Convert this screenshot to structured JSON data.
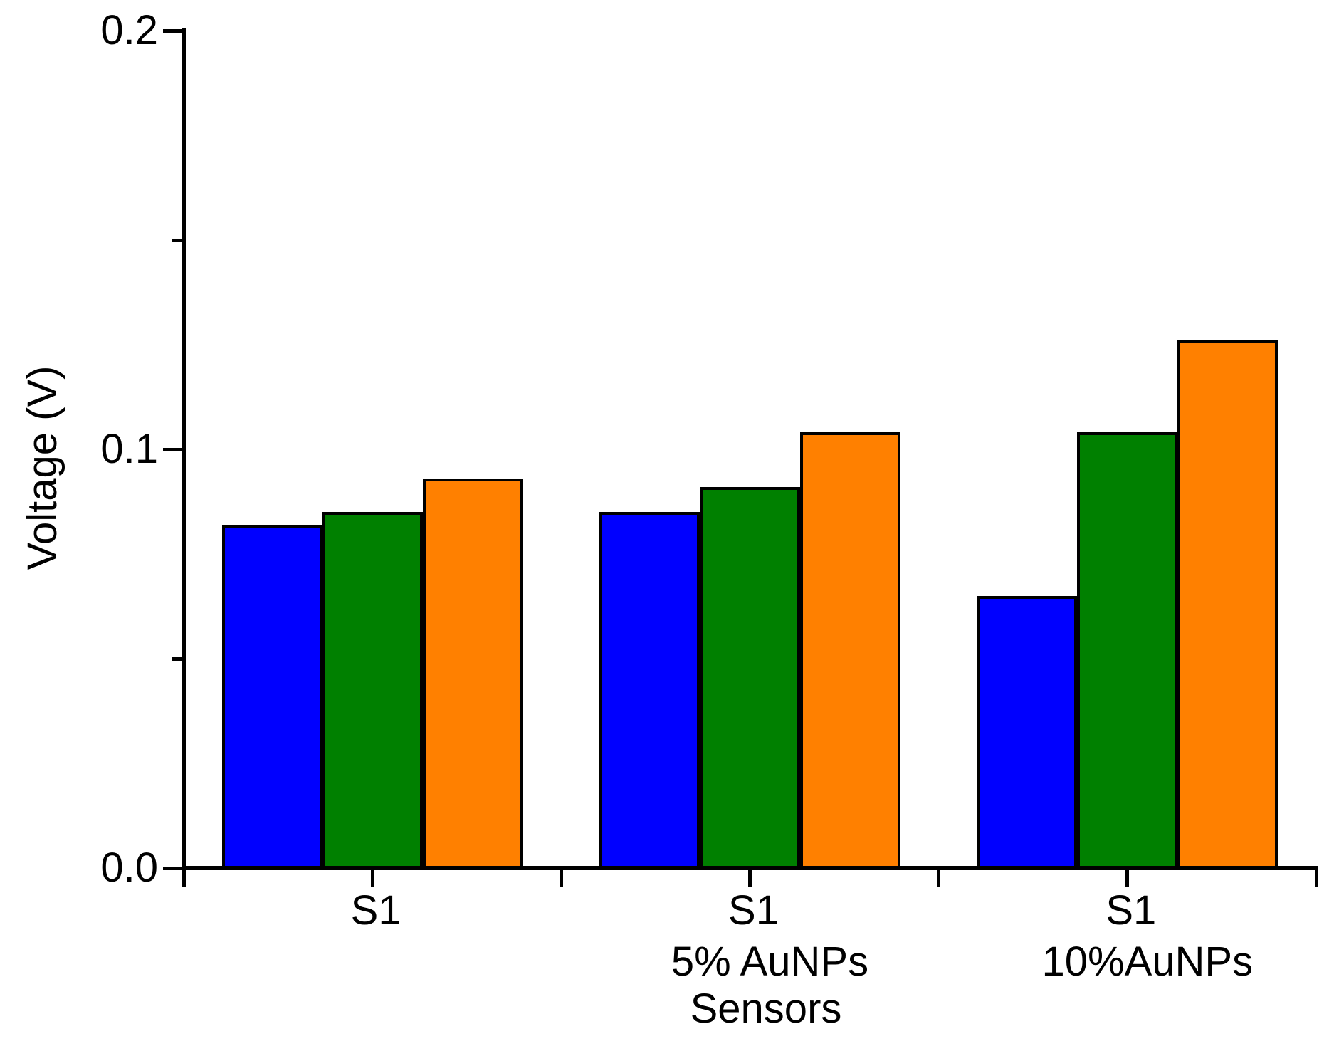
{
  "figure": {
    "background_color": "#FFFFFF",
    "axis_color": "#000000",
    "text_color": "#000000"
  },
  "chart_data": {
    "type": "bar",
    "title": "",
    "xlabel": "Sensors",
    "ylabel": "Voltage (V)",
    "ylim": [
      0.0,
      0.2
    ],
    "grid": false,
    "legend": false,
    "bar_outline_color": "#000000",
    "y_axis": {
      "major_ticks": [
        0.0,
        0.1,
        0.2
      ],
      "major_tick_labels": [
        "0.0",
        "0.1",
        "0.2"
      ],
      "minor_ticks": [
        0.05,
        0.15
      ]
    },
    "categories": [
      {
        "line1": "S1",
        "line2": ""
      },
      {
        "line1": "S1",
        "line2": "5% AuNPs"
      },
      {
        "line1": "S1",
        "line2": "10%AuNPs"
      }
    ],
    "series": [
      {
        "name": "blue",
        "color": "#0000FF",
        "values": [
          0.082,
          0.085,
          0.065
        ]
      },
      {
        "name": "green",
        "color": "#008000",
        "values": [
          0.085,
          0.091,
          0.104
        ]
      },
      {
        "name": "orange",
        "color": "#FF8000",
        "values": [
          0.093,
          0.104,
          0.126
        ]
      }
    ]
  }
}
